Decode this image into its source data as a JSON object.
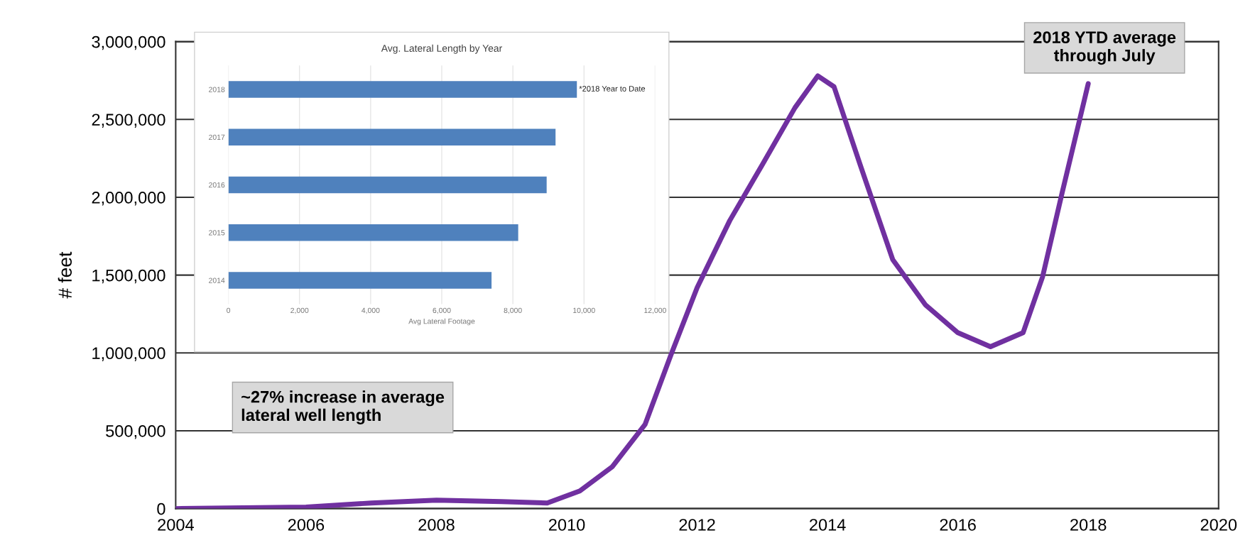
{
  "chart_data": [
    {
      "type": "line",
      "ylabel": "# feet",
      "x": [
        2004,
        2006,
        2007,
        2008,
        2009,
        2009.7,
        2010.2,
        2010.7,
        2011.2,
        2011.6,
        2012,
        2012.5,
        2013,
        2013.5,
        2013.85,
        2014.1,
        2014.5,
        2015,
        2015.5,
        2016,
        2016.5,
        2017,
        2017.3,
        2017.6,
        2018
      ],
      "series": [
        {
          "color": "#7030a0",
          "values": [
            0,
            10000,
            36000,
            54000,
            45000,
            36000,
            113000,
            270000,
            540000,
            990000,
            1420000,
            1850000,
            2210000,
            2575000,
            2780000,
            2710000,
            2210000,
            1600000,
            1310000,
            1130000,
            1040000,
            1130000,
            1490000,
            2030000,
            2730000
          ]
        }
      ],
      "xlim": [
        2004,
        2020
      ],
      "xticks": [
        2004,
        2006,
        2008,
        2010,
        2012,
        2014,
        2016,
        2018,
        2020
      ],
      "ylim": [
        0,
        3000000
      ],
      "yticks": [
        {
          "value": 0,
          "label": "0"
        },
        {
          "value": 500000,
          "label": "500,000"
        },
        {
          "value": 1000000,
          "label": "1,000,000"
        },
        {
          "value": 1500000,
          "label": "1,500,000"
        },
        {
          "value": 2000000,
          "label": "2,000,000"
        },
        {
          "value": 2500000,
          "label": "2,500,000"
        },
        {
          "value": 3000000,
          "label": "3,000,000"
        }
      ],
      "grid": "y",
      "legend": false,
      "marker": "none",
      "line_style": "solid",
      "annotations": [
        "~27% increase in average\nlateral well length",
        "2018 YTD average\nthrough July"
      ]
    },
    {
      "type": "bar",
      "orientation": "horizontal",
      "title": "Avg. Lateral Length by Year",
      "xlabel": "Avg Lateral Footage",
      "categories": [
        "2018",
        "2017",
        "2016",
        "2015",
        "2014"
      ],
      "values": [
        9800,
        9200,
        8950,
        8150,
        7400
      ],
      "color": "#4f81bd",
      "xlim": [
        0,
        12000
      ],
      "xticks": [
        {
          "value": 0,
          "label": "0"
        },
        {
          "value": 2000,
          "label": "2,000"
        },
        {
          "value": 4000,
          "label": "4,000"
        },
        {
          "value": 6000,
          "label": "6,000"
        },
        {
          "value": 8000,
          "label": "8,000"
        },
        {
          "value": 10000,
          "label": "10,000"
        },
        {
          "value": 12000,
          "label": "12,000"
        }
      ],
      "grid": "x",
      "legend": false,
      "annotations": [
        {
          "text": "*2018 Year to Date",
          "x": 9800,
          "y": "2018"
        }
      ]
    }
  ]
}
